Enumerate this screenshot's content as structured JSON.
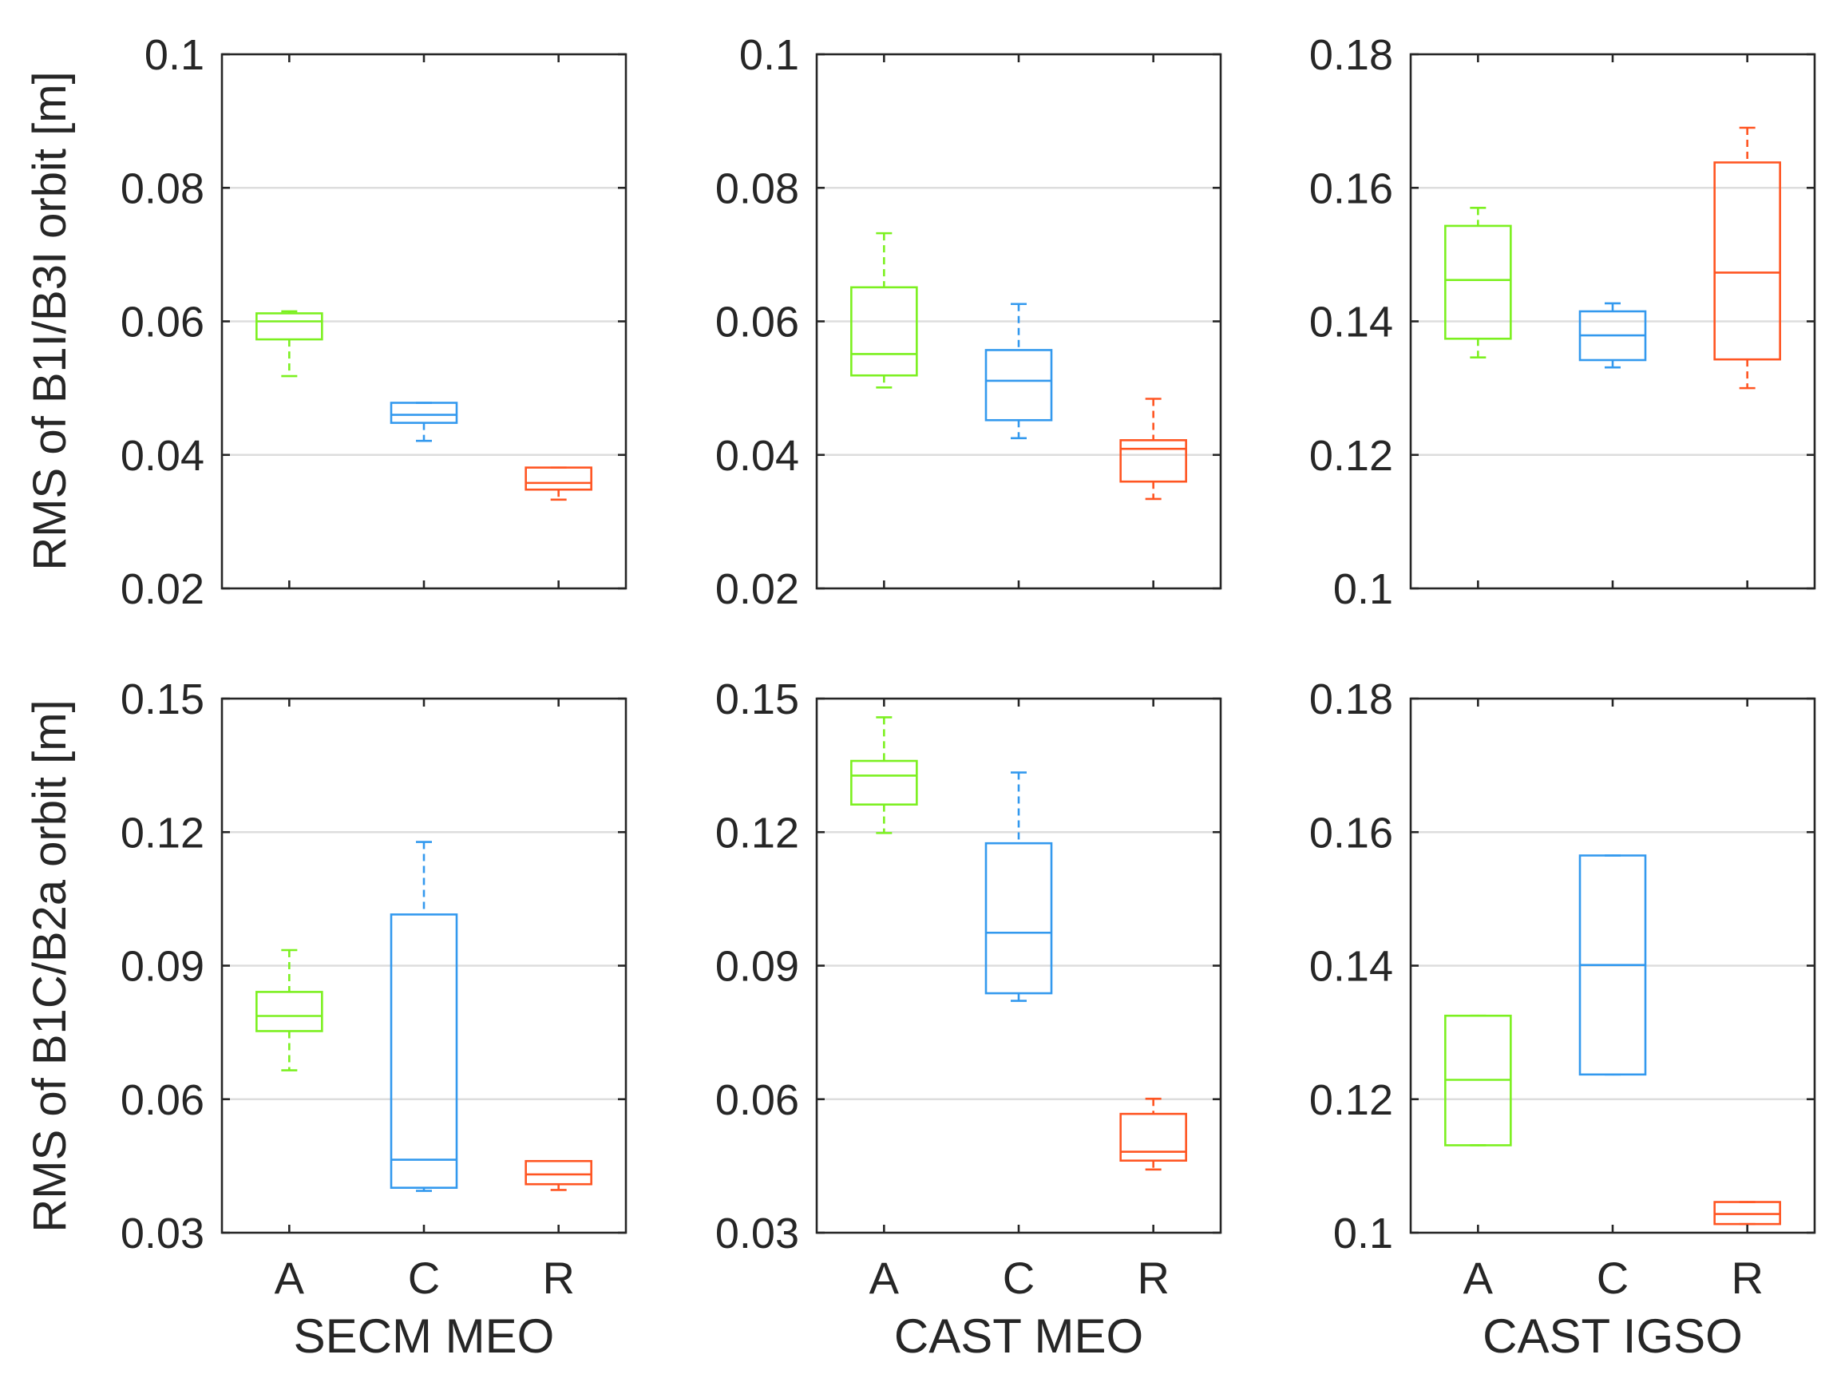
{
  "colors": {
    "A": "#7cf020",
    "C": "#3399ee",
    "R": "#ff5522",
    "grid": "#dddddd",
    "axis": "#262626"
  },
  "row_labels": [
    "RMS of B1I/B3I orbit [m]",
    "RMS of B1C/B2a orbit [m]"
  ],
  "chart_data": [
    {
      "type": "box",
      "title": "",
      "xlabel": "",
      "ylabel": "RMS of B1I/B3I orbit [m]",
      "categories": [
        "A",
        "C",
        "R"
      ],
      "ylim": [
        0.02,
        0.1
      ],
      "yticks": [
        0.02,
        0.04,
        0.06,
        0.08,
        0.1
      ],
      "ytick_labels": [
        "0.02",
        "0.04",
        "0.06",
        "0.08",
        "0.1"
      ],
      "show_xtick_labels": false,
      "grid": "y",
      "boxes": [
        {
          "category": "A",
          "whisker_low": 0.0518,
          "q1": 0.0573,
          "median": 0.06,
          "q3": 0.0612,
          "whisker_high": 0.0615
        },
        {
          "category": "C",
          "whisker_low": 0.0421,
          "q1": 0.0448,
          "median": 0.046,
          "q3": 0.0478,
          "whisker_high": 0.0478
        },
        {
          "category": "R",
          "whisker_low": 0.0333,
          "q1": 0.0348,
          "median": 0.0358,
          "q3": 0.0381,
          "whisker_high": 0.0381
        }
      ]
    },
    {
      "type": "box",
      "title": "",
      "xlabel": "",
      "ylabel": "",
      "categories": [
        "A",
        "C",
        "R"
      ],
      "ylim": [
        0.02,
        0.1
      ],
      "yticks": [
        0.02,
        0.04,
        0.06,
        0.08,
        0.1
      ],
      "ytick_labels": [
        "0.02",
        "0.04",
        "0.06",
        "0.08",
        "0.1"
      ],
      "show_xtick_labels": false,
      "grid": "y",
      "boxes": [
        {
          "category": "A",
          "whisker_low": 0.0501,
          "q1": 0.0519,
          "median": 0.0551,
          "q3": 0.0651,
          "whisker_high": 0.0732
        },
        {
          "category": "C",
          "whisker_low": 0.0425,
          "q1": 0.0452,
          "median": 0.0511,
          "q3": 0.0557,
          "whisker_high": 0.0626
        },
        {
          "category": "R",
          "whisker_low": 0.0334,
          "q1": 0.036,
          "median": 0.0409,
          "q3": 0.0422,
          "whisker_high": 0.0484
        }
      ]
    },
    {
      "type": "box",
      "title": "",
      "xlabel": "",
      "ylabel": "",
      "categories": [
        "A",
        "C",
        "R"
      ],
      "ylim": [
        0.1,
        0.18
      ],
      "yticks": [
        0.1,
        0.12,
        0.14,
        0.16,
        0.18
      ],
      "ytick_labels": [
        "0.1",
        "0.12",
        "0.14",
        "0.16",
        "0.18"
      ],
      "show_xtick_labels": false,
      "grid": "y",
      "boxes": [
        {
          "category": "A",
          "whisker_low": 0.1346,
          "q1": 0.1374,
          "median": 0.1462,
          "q3": 0.1543,
          "whisker_high": 0.157
        },
        {
          "category": "C",
          "whisker_low": 0.1331,
          "q1": 0.1342,
          "median": 0.1379,
          "q3": 0.1415,
          "whisker_high": 0.1427
        },
        {
          "category": "R",
          "whisker_low": 0.13,
          "q1": 0.1343,
          "median": 0.1473,
          "q3": 0.1638,
          "whisker_high": 0.169
        }
      ]
    },
    {
      "type": "box",
      "title": "",
      "xlabel": "SECM MEO",
      "ylabel": "RMS of B1C/B2a orbit [m]",
      "categories": [
        "A",
        "C",
        "R"
      ],
      "ylim": [
        0.03,
        0.15
      ],
      "yticks": [
        0.03,
        0.06,
        0.09,
        0.12,
        0.15
      ],
      "ytick_labels": [
        "0.03",
        "0.06",
        "0.09",
        "0.12",
        "0.15"
      ],
      "show_xtick_labels": true,
      "grid": "y",
      "boxes": [
        {
          "category": "A",
          "whisker_low": 0.0665,
          "q1": 0.0753,
          "median": 0.0787,
          "q3": 0.0841,
          "whisker_high": 0.0935
        },
        {
          "category": "C",
          "whisker_low": 0.0394,
          "q1": 0.0401,
          "median": 0.0464,
          "q3": 0.1015,
          "whisker_high": 0.1178
        },
        {
          "category": "R",
          "whisker_low": 0.0396,
          "q1": 0.0409,
          "median": 0.0431,
          "q3": 0.0461,
          "whisker_high": 0.0461
        }
      ]
    },
    {
      "type": "box",
      "title": "",
      "xlabel": "CAST MEO",
      "ylabel": "",
      "categories": [
        "A",
        "C",
        "R"
      ],
      "ylim": [
        0.03,
        0.15
      ],
      "yticks": [
        0.03,
        0.06,
        0.09,
        0.12,
        0.15
      ],
      "ytick_labels": [
        "0.03",
        "0.06",
        "0.09",
        "0.12",
        "0.15"
      ],
      "show_xtick_labels": true,
      "grid": "y",
      "boxes": [
        {
          "category": "A",
          "whisker_low": 0.1198,
          "q1": 0.1262,
          "median": 0.1327,
          "q3": 0.136,
          "whisker_high": 0.1458
        },
        {
          "category": "C",
          "whisker_low": 0.0821,
          "q1": 0.0838,
          "median": 0.0974,
          "q3": 0.1175,
          "whisker_high": 0.1334
        },
        {
          "category": "R",
          "whisker_low": 0.0442,
          "q1": 0.0462,
          "median": 0.0482,
          "q3": 0.0567,
          "whisker_high": 0.0601
        }
      ]
    },
    {
      "type": "box",
      "title": "",
      "xlabel": "CAST IGSO",
      "ylabel": "",
      "categories": [
        "A",
        "C",
        "R"
      ],
      "ylim": [
        0.1,
        0.18
      ],
      "yticks": [
        0.1,
        0.12,
        0.14,
        0.16,
        0.18
      ],
      "ytick_labels": [
        "0.1",
        "0.12",
        "0.14",
        "0.16",
        "0.18"
      ],
      "show_xtick_labels": true,
      "grid": "y",
      "boxes": [
        {
          "category": "A",
          "whisker_low": 0.1131,
          "q1": 0.1131,
          "median": 0.1229,
          "q3": 0.1325,
          "whisker_high": 0.1325
        },
        {
          "category": "C",
          "whisker_low": 0.1237,
          "q1": 0.1237,
          "median": 0.1401,
          "q3": 0.1565,
          "whisker_high": 0.1565
        },
        {
          "category": "R",
          "whisker_low": 0.1013,
          "q1": 0.1013,
          "median": 0.1028,
          "q3": 0.1046,
          "whisker_high": 0.1046
        }
      ]
    }
  ]
}
